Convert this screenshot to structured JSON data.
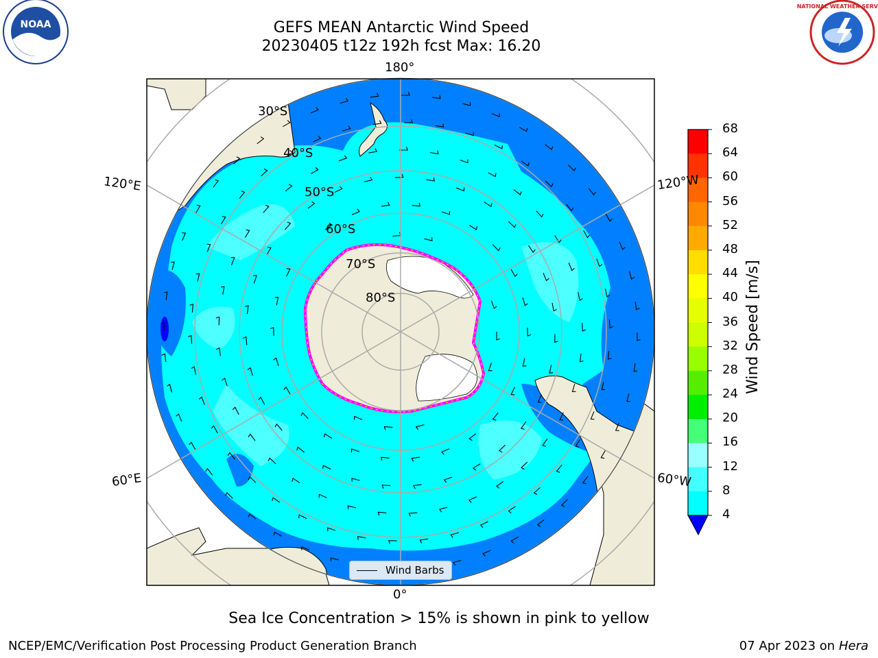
{
  "header": {
    "title_line1": "GEFS MEAN Antarctic Wind Speed",
    "title_line2": "20230405 t12z 192h fcst   Max: 16.20"
  },
  "logos": {
    "left": {
      "name": "noaa-logo",
      "text": "NOAA"
    },
    "right": {
      "name": "national-weather-service-logo",
      "text": "NATIONAL WEATHER SERVICE"
    }
  },
  "map": {
    "projection": "south-polar-stereographic",
    "longitude_labels": {
      "top": "180°",
      "bottom": "0°",
      "upper_left": "120°E",
      "upper_right": "120°W",
      "lower_left": "60°E",
      "lower_right": "60°W"
    },
    "latitude_labels": [
      "30°S",
      "40°S",
      "50°S",
      "60°S",
      "70°S",
      "80°S"
    ],
    "legend": {
      "label": "Wind Barbs"
    },
    "colors": {
      "ocean_outer": "#0080ff",
      "wind_8_12": "#00ffff",
      "wind_12_16": "#4dffff",
      "land": "#efedd9",
      "ice_shelf": "#ffffff",
      "sea_ice_edge": [
        "#ff00ff",
        "#ff77cc",
        "#ffcc00"
      ]
    }
  },
  "colorbar": {
    "label": "Wind Speed [m/s]",
    "ticks": [
      "68",
      "64",
      "60",
      "56",
      "52",
      "48",
      "44",
      "40",
      "36",
      "32",
      "28",
      "24",
      "20",
      "16",
      "12",
      "8",
      "4"
    ],
    "colors_top_to_bottom": [
      "#ff0000",
      "#ff3300",
      "#ff6600",
      "#ff8800",
      "#ffaa00",
      "#ffdd00",
      "#ffff00",
      "#e6ff00",
      "#ccff00",
      "#99ff00",
      "#55ee00",
      "#00ee00",
      "#44ff77",
      "#99ffff",
      "#44ffff",
      "#00ffff",
      "#0080ff"
    ],
    "extend_color": "#0000ff"
  },
  "caption": "Sea Ice Concentration > 15% is shown in pink to yellow",
  "footer": {
    "left": "NCEP/EMC/Verification Post Processing Product Generation Branch",
    "right_prefix": "07 Apr 2023 on ",
    "right_host": "Hera"
  }
}
